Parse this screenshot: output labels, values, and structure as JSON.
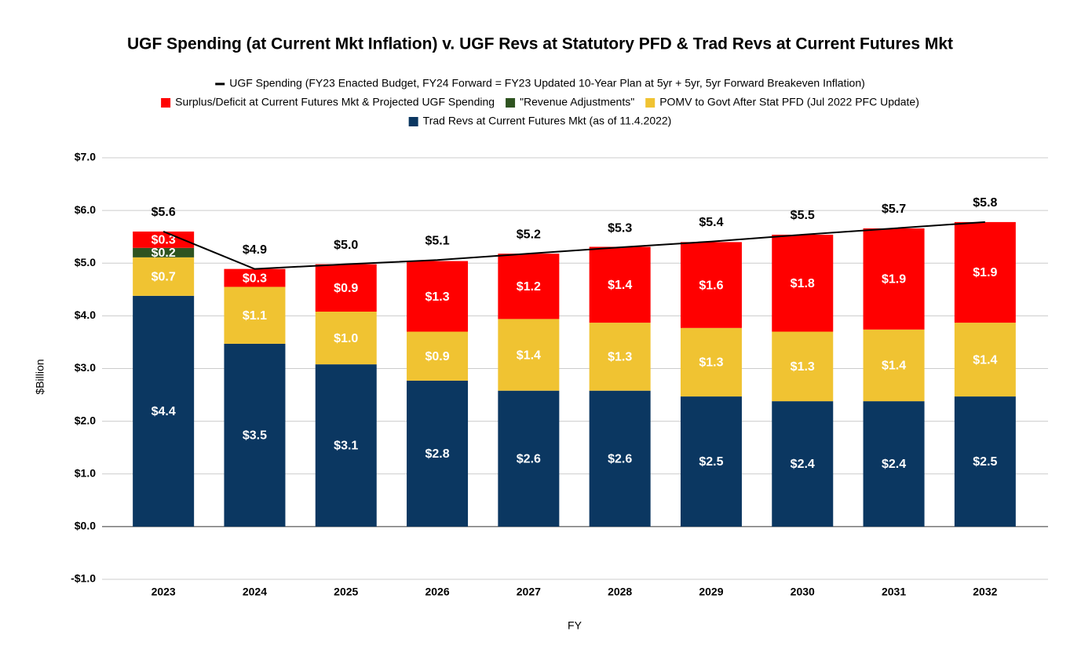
{
  "chart_data": {
    "type": "bar",
    "stacked": true,
    "title": "UGF Spending (at Current Mkt Inflation) v. UGF Revs at Statutory PFD & Trad Revs at Current Futures Mkt",
    "x_label": "FY",
    "y_label": "$Billion",
    "categories": [
      "2023",
      "2024",
      "2025",
      "2026",
      "2027",
      "2028",
      "2029",
      "2030",
      "2031",
      "2032"
    ],
    "series": [
      {
        "name": "Trad Revs at Current Futures Mkt (as of 11.4.2022)",
        "color": "#0b3761",
        "values": [
          4.38,
          3.47,
          3.08,
          2.77,
          2.58,
          2.58,
          2.47,
          2.38,
          2.38,
          2.47
        ],
        "value_labels": [
          "$4.4",
          "$3.5",
          "$3.1",
          "$2.8",
          "$2.6",
          "$2.6",
          "$2.5",
          "$2.4",
          "$2.4",
          "$2.5"
        ]
      },
      {
        "name": "POMV to Govt After Stat PFD (Jul 2022 PFC Update)",
        "color": "#f0c332",
        "values": [
          0.73,
          1.08,
          1.0,
          0.93,
          1.36,
          1.29,
          1.3,
          1.32,
          1.36,
          1.4
        ],
        "value_labels": [
          "$0.7",
          "$1.1",
          "$1.0",
          "$0.9",
          "$1.4",
          "$1.3",
          "$1.3",
          "$1.3",
          "$1.4",
          "$1.4"
        ]
      },
      {
        "name": "\"Revenue Adjustments\"",
        "color": "#2e5320",
        "values": [
          0.18,
          null,
          null,
          null,
          null,
          null,
          null,
          null,
          null,
          null
        ],
        "value_labels": [
          "$0.2",
          null,
          null,
          null,
          null,
          null,
          null,
          null,
          null,
          null
        ]
      },
      {
        "name": "Surplus/Deficit at Current Futures Mkt & Projected UGF Spending",
        "color": "#ff0000",
        "values": [
          0.31,
          0.34,
          0.9,
          1.34,
          1.24,
          1.44,
          1.63,
          1.84,
          1.92,
          1.91
        ],
        "value_labels": [
          "$0.3",
          "$0.3",
          "$0.9",
          "$1.3",
          "$1.2",
          "$1.4",
          "$1.6",
          "$1.8",
          "$1.9",
          "$1.9"
        ]
      },
      {
        "name": "UGF Spending (FY23 Enacted Budget, FY24 Forward = FY23 Updated 10-Year Plan at 5yr + 5yr, 5yr Forward Breakeven Inflation)",
        "color": "#000000",
        "type": "line",
        "values": [
          5.6,
          4.89,
          4.98,
          5.06,
          5.18,
          5.3,
          5.41,
          5.54,
          5.66,
          5.78
        ],
        "value_labels": [
          "$5.6",
          "$4.9",
          "$5.0",
          "$5.1",
          "$5.2",
          "$5.3",
          "$5.4",
          "$5.5",
          "$5.7",
          "$5.8"
        ]
      }
    ],
    "ylim": [
      -1,
      7
    ],
    "yticks": [
      {
        "value": -1,
        "label": "-$1.0"
      },
      {
        "value": 0,
        "label": "$0.0"
      },
      {
        "value": 1,
        "label": "$1.0"
      },
      {
        "value": 2,
        "label": "$2.0"
      },
      {
        "value": 3,
        "label": "$3.0"
      },
      {
        "value": 4,
        "label": "$4.0"
      },
      {
        "value": 5,
        "label": "$5.0"
      },
      {
        "value": 6,
        "label": "$6.0"
      },
      {
        "value": 7,
        "label": "$7.0"
      }
    ],
    "grid": true,
    "legend": "top"
  }
}
